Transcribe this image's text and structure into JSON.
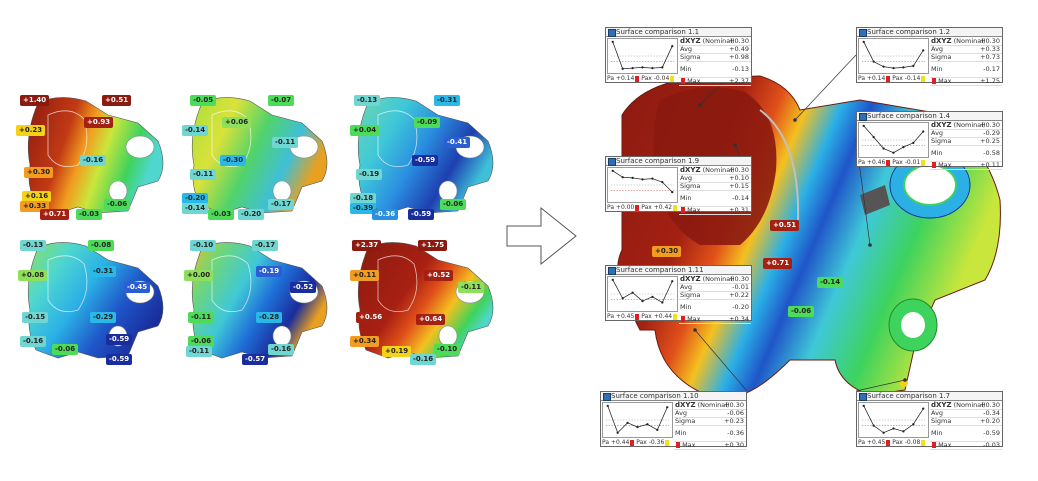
{
  "small_models": [
    {
      "tags": [
        {
          "text": "+1.40",
          "color": "#8b1a10",
          "fg": "#ffffff"
        },
        {
          "text": "+0.51",
          "color": "#8b1a10",
          "fg": "#ffffff"
        },
        {
          "text": "+0.93",
          "color": "#a32012",
          "fg": "#ffffff"
        },
        {
          "text": "+0.23",
          "color": "#f4d21a",
          "fg": "#222222"
        },
        {
          "text": "-0.16",
          "color": "#6fd6d2",
          "fg": "#222222"
        },
        {
          "text": "+0.30",
          "color": "#f39c1f",
          "fg": "#222222"
        },
        {
          "text": "+0.16",
          "color": "#f4d21a",
          "fg": "#222222"
        },
        {
          "text": "+0.33",
          "color": "#f39c1f",
          "fg": "#222222"
        },
        {
          "text": "+0.71",
          "color": "#a32012",
          "fg": "#ffffff"
        },
        {
          "text": "-0.03",
          "color": "#4ddc5a",
          "fg": "#222222"
        },
        {
          "text": "-0.06",
          "color": "#4ddc5a",
          "fg": "#222222"
        }
      ]
    },
    {
      "tags": [
        {
          "text": "-0.05",
          "color": "#4ddc5a",
          "fg": "#222222"
        },
        {
          "text": "-0.07",
          "color": "#4ddc5a",
          "fg": "#222222"
        },
        {
          "text": "-0.14",
          "color": "#6fd6d2",
          "fg": "#222222"
        },
        {
          "text": "+0.06",
          "color": "#8ee05a",
          "fg": "#222222"
        },
        {
          "text": "-0.11",
          "color": "#6fd6d2",
          "fg": "#222222"
        },
        {
          "text": "-0.30",
          "color": "#29b9e8",
          "fg": "#222222"
        },
        {
          "text": "-0.11",
          "color": "#6fd6d2",
          "fg": "#222222"
        },
        {
          "text": "-0.20",
          "color": "#29b9e8",
          "fg": "#222222"
        },
        {
          "text": "-0.14",
          "color": "#6fd6d2",
          "fg": "#222222"
        },
        {
          "text": "-0.03",
          "color": "#4ddc5a",
          "fg": "#222222"
        },
        {
          "text": "-0.20",
          "color": "#6fd6d2",
          "fg": "#222222"
        },
        {
          "text": "-0.17",
          "color": "#6fd6d2",
          "fg": "#222222"
        }
      ]
    },
    {
      "tags": [
        {
          "text": "-0.13",
          "color": "#6fd6d2",
          "fg": "#222222"
        },
        {
          "text": "-0.31",
          "color": "#29b9e8",
          "fg": "#222222"
        },
        {
          "text": "+0.04",
          "color": "#4ddc5a",
          "fg": "#222222"
        },
        {
          "text": "-0.09",
          "color": "#4ddc5a",
          "fg": "#222222"
        },
        {
          "text": "-0.41",
          "color": "#2a5fd4",
          "fg": "#ffffff"
        },
        {
          "text": "-0.59",
          "color": "#1a2d9c",
          "fg": "#ffffff"
        },
        {
          "text": "-0.19",
          "color": "#6fd6d2",
          "fg": "#222222"
        },
        {
          "text": "-0.18",
          "color": "#6fd6d2",
          "fg": "#222222"
        },
        {
          "text": "-0.39",
          "color": "#29b9e8",
          "fg": "#222222"
        },
        {
          "text": "-0.36",
          "color": "#2a8fe0",
          "fg": "#ffffff"
        },
        {
          "text": "-0.59",
          "color": "#1a2d9c",
          "fg": "#ffffff"
        },
        {
          "text": "-0.06",
          "color": "#4ddc5a",
          "fg": "#222222"
        }
      ]
    },
    {
      "tags": [
        {
          "text": "-0.13",
          "color": "#6fd6d2",
          "fg": "#222222"
        },
        {
          "text": "-0.08",
          "color": "#4ddc5a",
          "fg": "#222222"
        },
        {
          "text": "+0.08",
          "color": "#8ee05a",
          "fg": "#222222"
        },
        {
          "text": "-0.31",
          "color": "#29b9e8",
          "fg": "#222222"
        },
        {
          "text": "-0.45",
          "color": "#2a5fd4",
          "fg": "#ffffff"
        },
        {
          "text": "-0.15",
          "color": "#6fd6d2",
          "fg": "#222222"
        },
        {
          "text": "-0.29",
          "color": "#29b9e8",
          "fg": "#222222"
        },
        {
          "text": "-0.59",
          "color": "#1a2d9c",
          "fg": "#ffffff"
        },
        {
          "text": "-0.16",
          "color": "#6fd6d2",
          "fg": "#222222"
        },
        {
          "text": "-0.06",
          "color": "#4ddc5a",
          "fg": "#222222"
        },
        {
          "text": "-0.59",
          "color": "#1a2d9c",
          "fg": "#ffffff"
        }
      ]
    },
    {
      "tags": [
        {
          "text": "-0.10",
          "color": "#6fd6d2",
          "fg": "#222222"
        },
        {
          "text": "-0.17",
          "color": "#6fd6d2",
          "fg": "#222222"
        },
        {
          "text": "+0.00",
          "color": "#8ee05a",
          "fg": "#222222"
        },
        {
          "text": "-0.19",
          "color": "#2a5fd4",
          "fg": "#ffffff"
        },
        {
          "text": "-0.52",
          "color": "#1a2d9c",
          "fg": "#ffffff"
        },
        {
          "text": "-0.11",
          "color": "#4ddc5a",
          "fg": "#222222"
        },
        {
          "text": "-0.28",
          "color": "#29b9e8",
          "fg": "#222222"
        },
        {
          "text": "-0.06",
          "color": "#4ddc5a",
          "fg": "#222222"
        },
        {
          "text": "-0.11",
          "color": "#6fd6d2",
          "fg": "#222222"
        },
        {
          "text": "-0.16",
          "color": "#6fd6d2",
          "fg": "#222222"
        },
        {
          "text": "-0.57",
          "color": "#1a2d9c",
          "fg": "#ffffff"
        }
      ]
    },
    {
      "tags": [
        {
          "text": "+2.37",
          "color": "#8b1a10",
          "fg": "#ffffff"
        },
        {
          "text": "+1.75",
          "color": "#8b1a10",
          "fg": "#ffffff"
        },
        {
          "text": "+0.11",
          "color": "#f39c1f",
          "fg": "#222222"
        },
        {
          "text": "+0.52",
          "color": "#a32012",
          "fg": "#ffffff"
        },
        {
          "text": "-0.11",
          "color": "#8ee05a",
          "fg": "#222222"
        },
        {
          "text": "+0.56",
          "color": "#a32012",
          "fg": "#ffffff"
        },
        {
          "text": "+0.64",
          "color": "#a32012",
          "fg": "#ffffff"
        },
        {
          "text": "-0.10",
          "color": "#4ddc5a",
          "fg": "#222222"
        },
        {
          "text": "+0.34",
          "color": "#f39c1f",
          "fg": "#222222"
        },
        {
          "text": "+0.19",
          "color": "#f4d21a",
          "fg": "#222222"
        },
        {
          "text": "-0.16",
          "color": "#6fd6d2",
          "fg": "#222222"
        }
      ]
    }
  ],
  "big_model": {
    "tags": [
      {
        "text": "+0.51",
        "color": "#a32012",
        "fg": "#ffffff"
      },
      {
        "text": "+0.71",
        "color": "#a32012",
        "fg": "#ffffff"
      },
      {
        "text": "+0.30",
        "color": "#f39c1f",
        "fg": "#222222"
      },
      {
        "text": "-0.14",
        "color": "#4ddc5a",
        "fg": "#222222"
      },
      {
        "text": "-0.06",
        "color": "#4ddc5a",
        "fg": "#222222"
      }
    ]
  },
  "panels": [
    {
      "title": "Surface comparison 1.1",
      "hdr_key": "dXYZ",
      "hdr_sub": "(Nominal)",
      "hdr_val": "+0.30",
      "avg": "+0.49",
      "sigma": "+0.98",
      "min": "-0.13",
      "max": "+2.37",
      "pa": "Pa +0.14",
      "pa_color": "#e02020",
      "pax": "Pax -0.04",
      "pax_color": "#f0e020",
      "avg_label": "Avg",
      "sigma_label": "Sigma",
      "min_label": "Min",
      "max_label": "Max",
      "series": [
        1.0,
        -0.9,
        -0.85,
        -0.8,
        -0.85,
        -0.8,
        0.7
      ]
    },
    {
      "title": "Surface comparison 1.2",
      "hdr_key": "dXYZ",
      "hdr_sub": "(Nominal)",
      "hdr_val": "+0.30",
      "avg": "+0.33",
      "sigma": "+0.73",
      "min": "-0.17",
      "max": "+1.75",
      "pa": "Pa +0.14",
      "pa_color": "#e02020",
      "pax": "Pax -0.14",
      "pax_color": "#f0e020",
      "avg_label": "Avg",
      "sigma_label": "Sigma",
      "min_label": "Min",
      "max_label": "Max",
      "series": [
        1.0,
        -0.4,
        -0.75,
        -0.85,
        -0.8,
        -0.7,
        0.4
      ]
    },
    {
      "title": "Surface comparison 1.4",
      "hdr_key": "dXYZ",
      "hdr_sub": "(Nominal)",
      "hdr_val": "+0.30",
      "avg": "-0.29",
      "sigma": "+0.25",
      "min": "-0.58",
      "max": "+0.11",
      "pa": "Pa +0.46",
      "pa_color": "#e02020",
      "pax": "Pax -0.01",
      "pax_color": "#f0e020",
      "avg_label": "Avg",
      "sigma_label": "Sigma",
      "min_label": "Min",
      "max_label": "Max",
      "series": [
        1.0,
        0.2,
        -0.6,
        -0.9,
        -0.5,
        -0.2,
        0.6
      ]
    },
    {
      "title": "Surface comparison 1.9",
      "hdr_key": "dXYZ",
      "hdr_sub": "(Nominal)",
      "hdr_val": "+0.30",
      "avg": "+0.10",
      "sigma": "+0.15",
      "min": "-0.14",
      "max": "+0.31",
      "pa": "Pa +0.00",
      "pa_color": "#e02020",
      "pax": "Pax +0.42",
      "pax_color": "#f0e020",
      "avg_label": "Avg",
      "sigma_label": "Sigma",
      "min_label": "Min",
      "max_label": "Max",
      "series": [
        1.0,
        0.55,
        0.5,
        0.4,
        0.45,
        0.2,
        -0.5
      ]
    },
    {
      "title": "Surface comparison 1.11",
      "hdr_key": "dXYZ",
      "hdr_sub": "(Nominal)",
      "hdr_val": "+0.30",
      "avg": "-0.01",
      "sigma": "+0.22",
      "min": "-0.20",
      "max": "+0.34",
      "pa": "Pa +0.45",
      "pa_color": "#e02020",
      "pax": "Pax +0.44",
      "pax_color": "#f0e020",
      "avg_label": "Avg",
      "sigma_label": "Sigma",
      "min_label": "Min",
      "max_label": "Max",
      "series": [
        1.0,
        -0.3,
        0.1,
        -0.5,
        -0.2,
        -0.6,
        0.9
      ]
    },
    {
      "title": "Surface comparison 1.10",
      "hdr_key": "dXYZ",
      "hdr_sub": "(Nominal)",
      "hdr_val": "+0.30",
      "avg": "-0.06",
      "sigma": "+0.23",
      "min": "-0.36",
      "max": "+0.30",
      "pa": "Pa +0.44",
      "pa_color": "#e02020",
      "pax": "Pax -0.36",
      "pax_color": "#f0e020",
      "avg_label": "Avg",
      "sigma_label": "Sigma",
      "min_label": "Min",
      "max_label": "Max",
      "series": [
        1.0,
        -0.9,
        -0.2,
        -0.5,
        -0.3,
        -0.7,
        0.9
      ]
    },
    {
      "title": "Surface comparison 1.7",
      "hdr_key": "dXYZ",
      "hdr_sub": "(Nominal)",
      "hdr_val": "+0.30",
      "avg": "-0.34",
      "sigma": "+0.20",
      "min": "-0.59",
      "max": "-0.03",
      "pa": "Pa +0.45",
      "pa_color": "#e02020",
      "pax": "Pax -0.08",
      "pax_color": "#f0e020",
      "avg_label": "Avg",
      "sigma_label": "Sigma",
      "min_label": "Min",
      "max_label": "Max",
      "series": [
        1.0,
        -0.4,
        -0.9,
        -0.6,
        -0.8,
        -0.3,
        0.8
      ]
    }
  ]
}
